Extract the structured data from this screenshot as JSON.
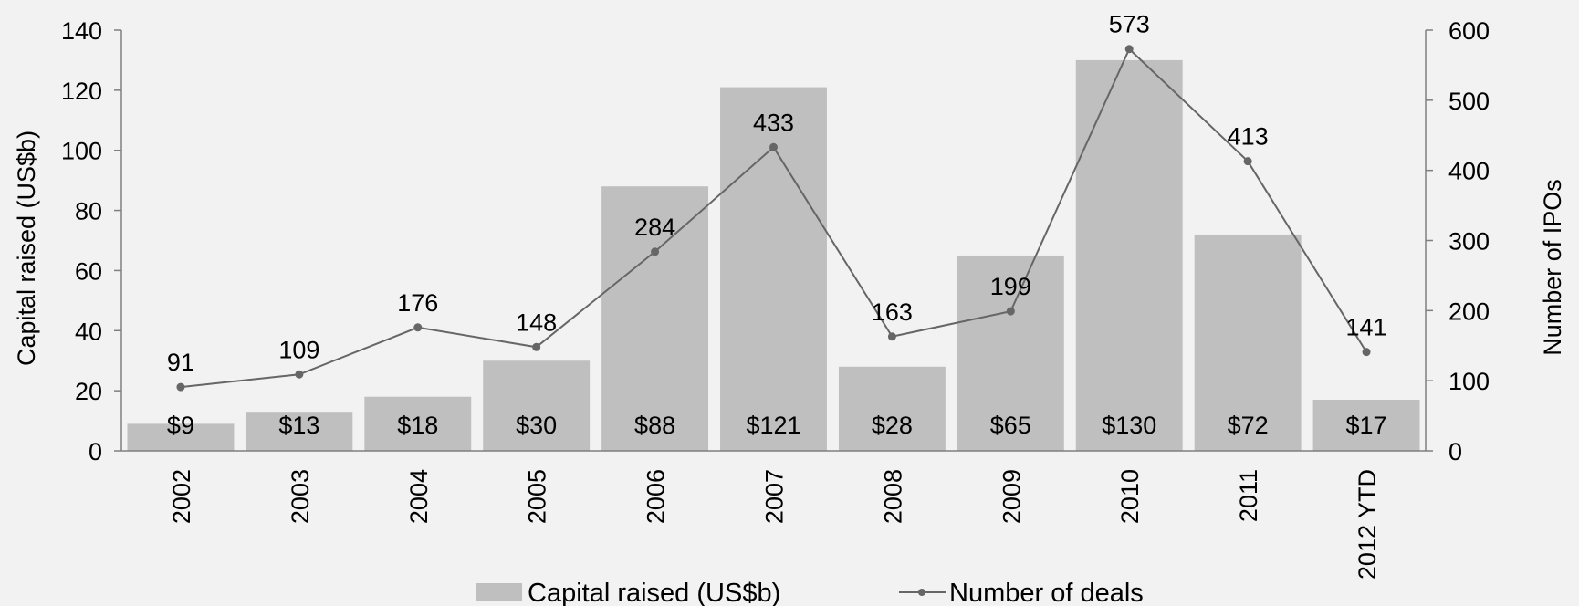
{
  "chart_data": {
    "type": "bar",
    "categories": [
      "2002",
      "2003",
      "2004",
      "2005",
      "2006",
      "2007",
      "2008",
      "2009",
      "2010",
      "2011",
      "2012 YTD"
    ],
    "series": [
      {
        "name": "Capital raised (US$b)",
        "type": "bar",
        "axis": "left",
        "values": [
          9,
          13,
          18,
          30,
          88,
          121,
          28,
          65,
          130,
          72,
          17
        ],
        "labels": [
          "$9",
          "$13",
          "$18",
          "$30",
          "$88",
          "$121",
          "$28",
          "$65",
          "$130",
          "$72",
          "$17"
        ],
        "color": "#bfbfbf"
      },
      {
        "name": "Number of deals",
        "type": "line",
        "axis": "right",
        "values": [
          91,
          109,
          176,
          148,
          284,
          433,
          163,
          199,
          573,
          413,
          141
        ],
        "labels": [
          "91",
          "109",
          "176",
          "148",
          "284",
          "433",
          "163",
          "199",
          "573",
          "413",
          "141"
        ],
        "color": "#666666"
      }
    ],
    "ylabel": "Capital raised (US$b)",
    "y2label": "Number of IPOs",
    "ylim": [
      0,
      140
    ],
    "y2lim": [
      0,
      600
    ],
    "yticks": [
      "0",
      "20",
      "40",
      "60",
      "80",
      "100",
      "120",
      "140"
    ],
    "y2ticks": [
      "0",
      "100",
      "200",
      "300",
      "400",
      "500",
      "600"
    ],
    "grid": false,
    "legend_position": "bottom"
  }
}
